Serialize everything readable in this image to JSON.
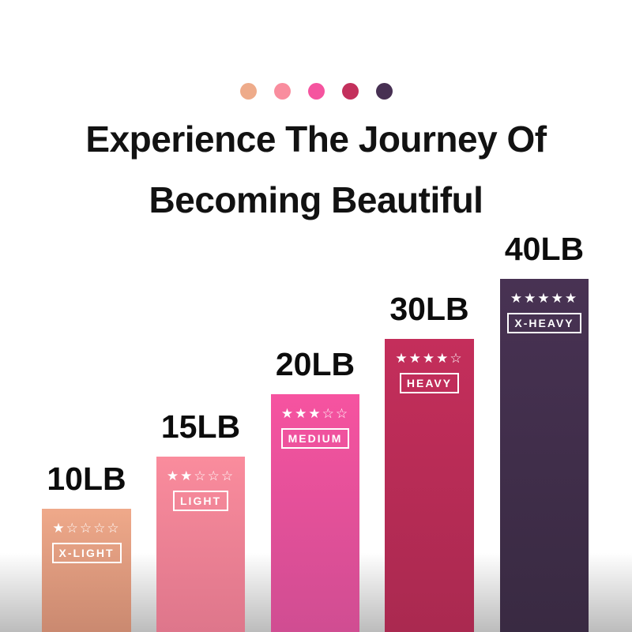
{
  "page": {
    "title_line1": "Experience The Journey Of",
    "title_line2": "Becoming Beautiful",
    "text_color": "#121212",
    "background_color": "#ffffff",
    "floor_fade_color": "#bcbcbc"
  },
  "palette_dots": [
    {
      "name": "x-light-dot",
      "color": "#eeab8a"
    },
    {
      "name": "light-dot",
      "color": "#f98d9e"
    },
    {
      "name": "medium-dot",
      "color": "#f5549f"
    },
    {
      "name": "heavy-dot",
      "color": "#c3305c"
    },
    {
      "name": "x-heavy-dot",
      "color": "#473053"
    }
  ],
  "bands": [
    {
      "weight": "10LB",
      "level": "X-LIGHT",
      "rating": 1,
      "stars_display": "★☆☆☆☆",
      "color_top": "#efa98a",
      "color_bottom": "#ca8970"
    },
    {
      "weight": "15LB",
      "level": "LIGHT",
      "rating": 2,
      "stars_display": "★★☆☆☆",
      "color_top": "#fa8c9d",
      "color_bottom": "#de768b"
    },
    {
      "weight": "20LB",
      "level": "MEDIUM",
      "rating": 3,
      "stars_display": "★★★☆☆",
      "color_top": "#f653a0",
      "color_bottom": "#d04d92"
    },
    {
      "weight": "30LB",
      "level": "HEAVY",
      "rating": 4,
      "stars_display": "★★★★☆",
      "color_top": "#c42e5b",
      "color_bottom": "#aa2950"
    },
    {
      "weight": "40LB",
      "level": "X-HEAVY",
      "rating": 5,
      "stars_display": "★★★★★",
      "color_top": "#483253",
      "color_bottom": "#392a42"
    }
  ],
  "chart_data": {
    "type": "bar",
    "title": "Experience The Journey Of Becoming Beautiful",
    "categories": [
      "X-LIGHT",
      "LIGHT",
      "MEDIUM",
      "HEAVY",
      "X-HEAVY"
    ],
    "values": [
      10,
      15,
      20,
      30,
      40
    ],
    "unit": "LB",
    "value_labels": [
      "10LB",
      "15LB",
      "20LB",
      "30LB",
      "40LB"
    ],
    "ratings_out_of_5": [
      1,
      2,
      3,
      4,
      5
    ],
    "bar_colors": [
      "#efa98a",
      "#fa8c9d",
      "#f653a0",
      "#c42e5b",
      "#483253"
    ],
    "xlabel": "",
    "ylabel": "",
    "grid": false,
    "axes_visible": false,
    "legend_position": "none",
    "value_label_position": "above-bar"
  }
}
